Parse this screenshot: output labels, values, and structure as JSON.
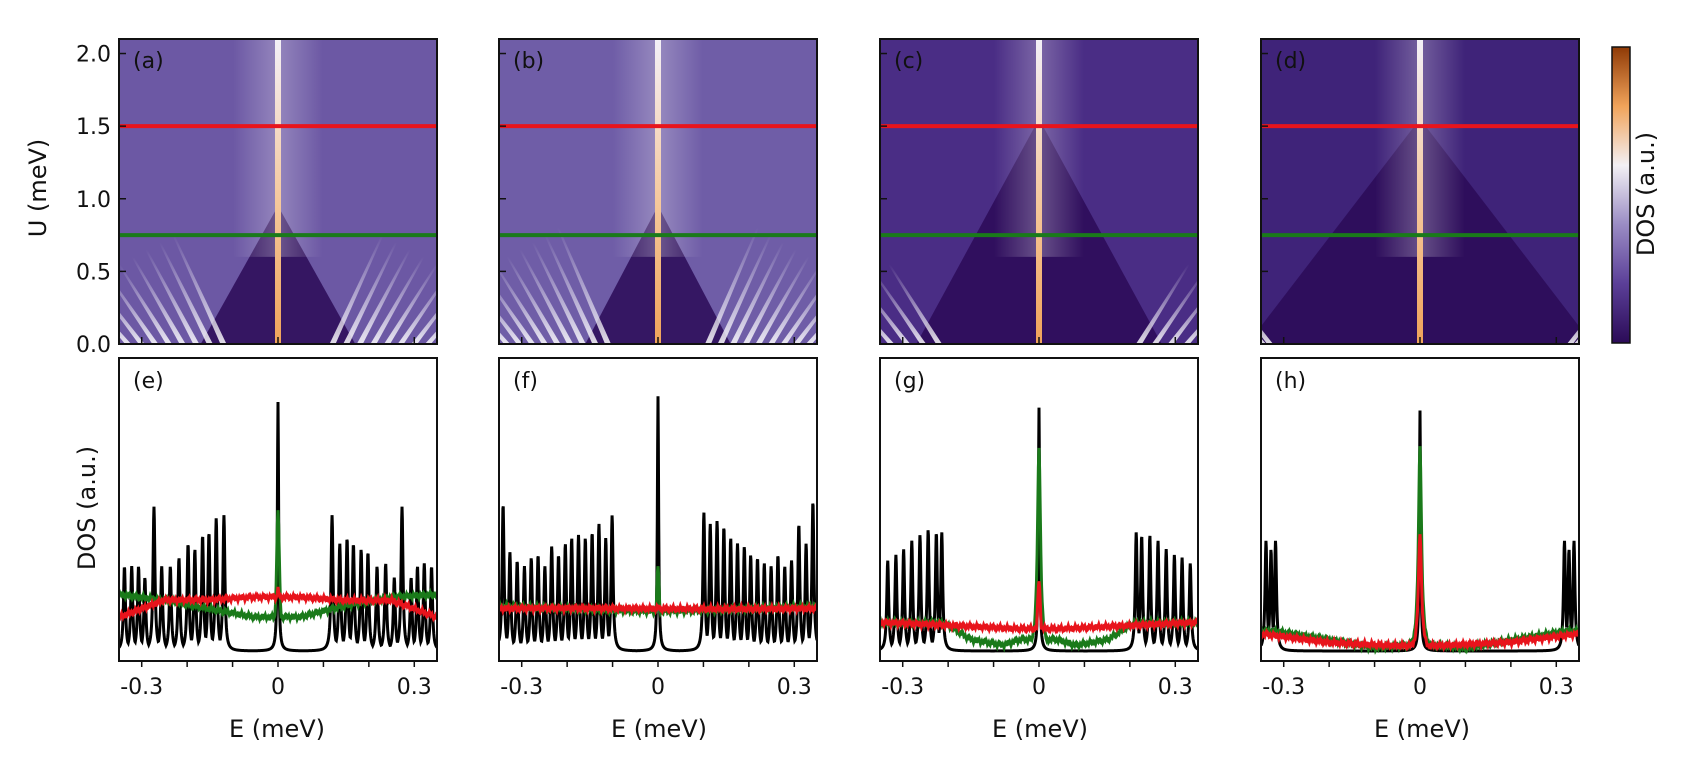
{
  "chart_data": {
    "type": "heatmap",
    "colorbar": {
      "label": "DOS (a.u.)",
      "colors": [
        "#2b0b57",
        "#5b3f98",
        "#9a8cc4",
        "#f2f0f4",
        "#f1a35a",
        "#8f3a06"
      ]
    },
    "line_colors": {
      "black": "#000000",
      "green": "#1a7a1a",
      "red": "#e8141c"
    },
    "shared_axes": {
      "top_ylabel": "U (meV)",
      "bottom_ylabel": "DOS (a.u.)",
      "xlabel": "E (meV)",
      "x_range": [
        -0.35,
        0.35
      ],
      "x_ticks": [
        "-0.3",
        "0",
        "0.3"
      ],
      "x_tick_values": [
        -0.3,
        0,
        0.3
      ],
      "u_range": [
        0,
        2.1
      ],
      "u_ticks": [
        "0.0",
        "0.5",
        "1.0",
        "1.5",
        "2.0"
      ],
      "u_tick_values": [
        0.0,
        0.5,
        1.0,
        1.5,
        2.0
      ]
    },
    "top_panels": [
      {
        "label": "(a)",
        "red_line_U": 1.5,
        "green_line_U": 0.75,
        "gap_edge": 0.11,
        "fan_count": 8,
        "background": "#6c58a4"
      },
      {
        "label": "(b)",
        "red_line_U": 1.5,
        "green_line_U": 0.75,
        "gap_edge": 0.1,
        "fan_count": 9,
        "background": "#6f5da7"
      },
      {
        "label": "(c)",
        "red_line_U": 1.5,
        "green_line_U": 0.75,
        "gap_edge": 0.21,
        "fan_count": 4,
        "background": "#4a2d85"
      },
      {
        "label": "(d)",
        "red_line_U": 1.5,
        "green_line_U": 0.75,
        "gap_edge": 0.32,
        "fan_count": 2,
        "background": "#3f2379"
      }
    ],
    "bottom_panels": [
      {
        "label": "(e)",
        "black_peaks_E": [
          -0.338,
          -0.322,
          -0.307,
          -0.293,
          -0.273,
          -0.256,
          -0.237,
          -0.218,
          -0.198,
          -0.183,
          -0.166,
          -0.152,
          -0.136,
          -0.119,
          0.0,
          0.119,
          0.136,
          0.152,
          0.166,
          0.183,
          0.198,
          0.218,
          0.237,
          0.256,
          0.273,
          0.293,
          0.307,
          0.322,
          0.338
        ],
        "black_peaks_height": [
          0.3,
          0.3,
          0.3,
          0.26,
          0.51,
          0.3,
          0.3,
          0.33,
          0.38,
          0.36,
          0.41,
          0.42,
          0.47,
          0.48,
          0.88,
          0.48,
          0.38,
          0.4,
          0.38,
          0.36,
          0.35,
          0.3,
          0.31,
          0.26,
          0.51,
          0.26,
          0.3,
          0.31,
          0.3
        ],
        "green_profile": {
          "E": [
            -0.35,
            -0.25,
            -0.15,
            -0.05,
            0.0,
            0.05,
            0.15,
            0.25,
            0.35
          ],
          "DOS": [
            0.2,
            0.18,
            0.15,
            0.12,
            0.5,
            0.12,
            0.16,
            0.19,
            0.2
          ]
        },
        "red_profile": {
          "E": [
            -0.35,
            -0.25,
            -0.15,
            -0.05,
            0.0,
            0.05,
            0.15,
            0.25,
            0.35
          ],
          "DOS": [
            0.12,
            0.18,
            0.18,
            0.19,
            0.23,
            0.19,
            0.18,
            0.18,
            0.12
          ]
        }
      },
      {
        "label": "(f)",
        "black_peaks_E": [
          -0.341,
          -0.326,
          -0.31,
          -0.294,
          -0.279,
          -0.264,
          -0.249,
          -0.234,
          -0.219,
          -0.204,
          -0.19,
          -0.175,
          -0.16,
          -0.145,
          -0.13,
          -0.115,
          -0.101,
          0.0,
          0.101,
          0.115,
          0.13,
          0.145,
          0.16,
          0.175,
          0.19,
          0.204,
          0.219,
          0.234,
          0.249,
          0.264,
          0.279,
          0.294,
          0.31,
          0.326,
          0.341
        ],
        "black_peaks_height": [
          0.52,
          0.35,
          0.32,
          0.3,
          0.33,
          0.34,
          0.3,
          0.37,
          0.34,
          0.38,
          0.4,
          0.41,
          0.4,
          0.42,
          0.45,
          0.4,
          0.48,
          0.9,
          0.49,
          0.45,
          0.46,
          0.44,
          0.4,
          0.38,
          0.37,
          0.34,
          0.33,
          0.31,
          0.3,
          0.34,
          0.3,
          0.32,
          0.45,
          0.38,
          0.53
        ],
        "green_profile": {
          "E": [
            -0.35,
            -0.2,
            -0.05,
            0.0,
            0.05,
            0.2,
            0.35
          ],
          "DOS": [
            0.16,
            0.15,
            0.14,
            0.3,
            0.14,
            0.15,
            0.16
          ]
        },
        "red_profile": {
          "E": [
            -0.35,
            -0.2,
            -0.05,
            0.0,
            0.05,
            0.2,
            0.35
          ],
          "DOS": [
            0.15,
            0.15,
            0.15,
            0.16,
            0.15,
            0.15,
            0.15
          ]
        }
      },
      {
        "label": "(g)",
        "black_peaks_E": [
          -0.333,
          -0.315,
          -0.298,
          -0.28,
          -0.262,
          -0.244,
          -0.226,
          -0.214,
          0.0,
          0.214,
          0.226,
          0.244,
          0.262,
          0.28,
          0.298,
          0.315,
          0.333
        ],
        "black_peaks_height": [
          0.32,
          0.34,
          0.36,
          0.39,
          0.41,
          0.43,
          0.42,
          0.42,
          0.86,
          0.42,
          0.41,
          0.41,
          0.39,
          0.36,
          0.34,
          0.33,
          0.31
        ],
        "green_profile": {
          "E": [
            -0.35,
            -0.21,
            -0.15,
            -0.08,
            -0.04,
            0.0,
            0.04,
            0.08,
            0.15,
            0.21,
            0.35
          ],
          "DOS": [
            0.1,
            0.1,
            0.04,
            0.02,
            0.04,
            0.72,
            0.04,
            0.02,
            0.04,
            0.1,
            0.1
          ]
        },
        "red_profile": {
          "E": [
            -0.35,
            -0.2,
            -0.05,
            0.0,
            0.05,
            0.2,
            0.35
          ],
          "DOS": [
            0.1,
            0.09,
            0.08,
            0.25,
            0.08,
            0.09,
            0.1
          ]
        }
      },
      {
        "label": "(h)",
        "black_peaks_E": [
          -0.339,
          -0.328,
          -0.318,
          0.0,
          0.318,
          0.328,
          0.339
        ],
        "black_peaks_height": [
          0.39,
          0.36,
          0.39,
          0.85,
          0.39,
          0.36,
          0.39
        ],
        "green_profile": {
          "E": [
            -0.35,
            -0.32,
            -0.2,
            -0.1,
            -0.04,
            0.0,
            0.04,
            0.1,
            0.2,
            0.32,
            0.35
          ],
          "DOS": [
            0.07,
            0.07,
            0.04,
            0.01,
            0.02,
            0.73,
            0.02,
            0.01,
            0.04,
            0.07,
            0.07
          ]
        },
        "red_profile": {
          "E": [
            -0.35,
            -0.2,
            -0.05,
            0.0,
            0.05,
            0.2,
            0.35
          ],
          "DOS": [
            0.06,
            0.03,
            0.02,
            0.42,
            0.02,
            0.03,
            0.06
          ]
        }
      }
    ]
  }
}
